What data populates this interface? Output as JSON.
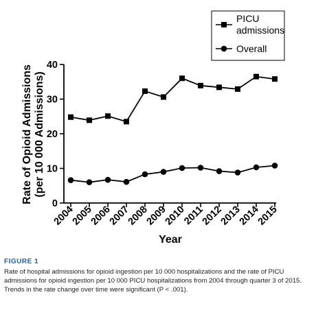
{
  "caption": {
    "label": "FIGURE 1",
    "text": "Rate of hospital admissions for opioid ingestion per 10 000 hospitalizations and the rate of PICU admissions for opioid ingestion per 10 000 PICU hospitalizations from 2004 through quarter 3 of 2015. Trends in the rate change over time were significant (P < .001)."
  },
  "chart_data": {
    "type": "line",
    "title": "",
    "xlabel": "Year",
    "ylabel_line1": "Rate of Opioid Admissions",
    "ylabel_line2": "(per 10 000 Admissions)",
    "categories": [
      "2004",
      "2005",
      "2006",
      "2007",
      "2008",
      "2009",
      "2010",
      "2011",
      "2012",
      "2013",
      "2014",
      "2015"
    ],
    "ylim": [
      0,
      40
    ],
    "yticks": [
      "0",
      "10",
      "20",
      "30",
      "40"
    ],
    "grid": false,
    "legend_position": "top-right",
    "series": [
      {
        "name": "PICU admissions",
        "name_line1": "PICU",
        "name_line2": "admissions",
        "marker": "square",
        "values": [
          24.8,
          23.9,
          25.1,
          23.5,
          32.3,
          30.6,
          36.0,
          33.9,
          33.4,
          32.9,
          36.5,
          35.8
        ]
      },
      {
        "name": "Overall",
        "marker": "circle",
        "values": [
          6.6,
          6.0,
          6.7,
          6.1,
          8.3,
          9.0,
          10.1,
          10.2,
          9.2,
          8.8,
          10.3,
          10.8
        ]
      }
    ]
  }
}
